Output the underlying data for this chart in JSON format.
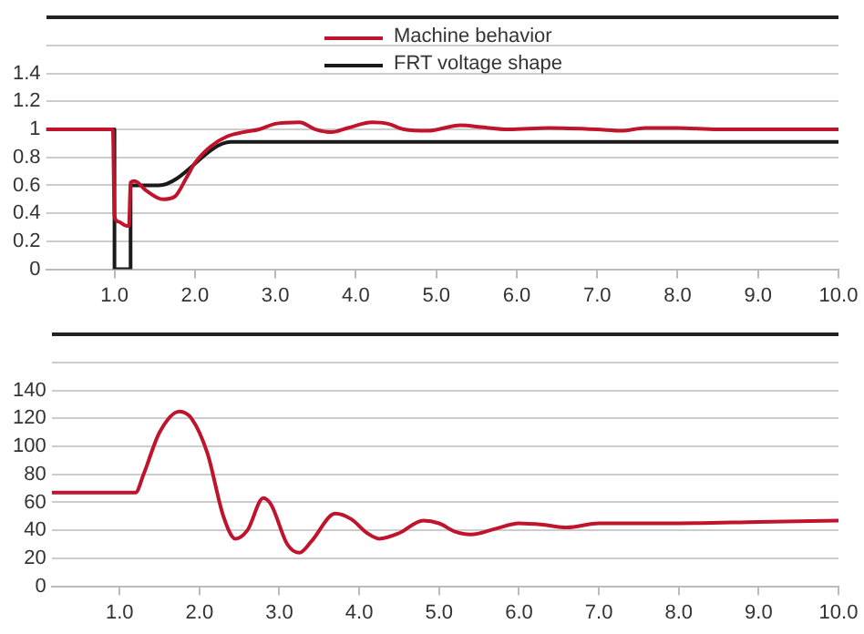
{
  "chart_data": [
    {
      "type": "line",
      "legend": "top",
      "grid": "y",
      "marker": "none",
      "xlim": [
        0.15,
        10
      ],
      "xticks": [
        {
          "value": 1,
          "label": "1.0"
        },
        {
          "value": 2,
          "label": "2.0"
        },
        {
          "value": 3,
          "label": "3.0"
        },
        {
          "value": 4,
          "label": "4.0"
        },
        {
          "value": 5,
          "label": "5.0"
        },
        {
          "value": 6,
          "label": "6.0"
        },
        {
          "value": 7,
          "label": "7.0"
        },
        {
          "value": 8,
          "label": "8.0"
        },
        {
          "value": 9,
          "label": "9.0"
        },
        {
          "value": 10,
          "label": "10.0"
        }
      ],
      "ylim": [
        0,
        1.8
      ],
      "yticks": [
        0,
        0.2,
        0.4,
        0.6,
        0.8,
        1,
        1.2,
        1.4,
        {
          "value": 1.6,
          "label": null
        },
        {
          "value": 1.8,
          "label": null
        }
      ],
      "series": [
        {
          "name": "Machine behavior",
          "color": "#c0142c",
          "x": [
            0.15,
            0.98,
            1.0,
            1.05,
            1.15,
            1.18,
            1.2,
            1.25,
            1.4,
            1.6,
            1.75,
            1.9,
            2.0,
            2.2,
            2.4,
            2.6,
            2.8,
            3.0,
            3.3,
            3.5,
            3.7,
            3.9,
            4.2,
            4.4,
            4.6,
            4.9,
            5.3,
            5.5,
            5.9,
            6.4,
            7.0,
            7.3,
            7.6,
            8.0,
            8.5,
            10
          ],
          "values": [
            1,
            1,
            0.38,
            0.34,
            0.31,
            0.31,
            0.62,
            0.63,
            0.56,
            0.5,
            0.52,
            0.66,
            0.76,
            0.88,
            0.95,
            0.98,
            1.0,
            1.04,
            1.05,
            1.0,
            0.98,
            1.01,
            1.05,
            1.04,
            1.0,
            0.99,
            1.03,
            1.02,
            1.0,
            1.01,
            1.0,
            0.99,
            1.01,
            1.01,
            1.0,
            1.0
          ]
        },
        {
          "name": "FRT voltage shape",
          "color": "#1a1a1a",
          "x": [
            0.15,
            1.0,
            1.0,
            1.2,
            1.2,
            1.55,
            2.45,
            10
          ],
          "values": [
            1,
            1,
            0,
            0,
            0.6,
            0.6,
            0.91,
            0.91
          ]
        }
      ]
    },
    {
      "type": "line",
      "grid": "y",
      "marker": "none",
      "xlim": [
        0.15,
        10
      ],
      "xticks": [
        {
          "value": 1,
          "label": "1.0"
        },
        {
          "value": 2,
          "label": "2.0"
        },
        {
          "value": 3,
          "label": "3.0"
        },
        {
          "value": 4,
          "label": "4.0"
        },
        {
          "value": 5,
          "label": "5.0"
        },
        {
          "value": 6,
          "label": "6.0"
        },
        {
          "value": 7,
          "label": "7.0"
        },
        {
          "value": 8,
          "label": "8.0"
        },
        {
          "value": 9,
          "label": "9.0"
        },
        {
          "value": 10,
          "label": "10.0"
        }
      ],
      "ylim": [
        0,
        180
      ],
      "yticks": [
        0,
        20,
        40,
        60,
        80,
        100,
        120,
        140,
        {
          "value": 160,
          "label": null
        },
        {
          "value": 180,
          "label": null
        }
      ],
      "series": [
        {
          "color": "#c0142c",
          "x": [
            0.15,
            1.2,
            1.3,
            1.5,
            1.75,
            1.9,
            2.1,
            2.3,
            2.45,
            2.6,
            2.8,
            2.9,
            3.1,
            3.25,
            3.4,
            3.7,
            3.9,
            4.1,
            4.25,
            4.5,
            4.8,
            5.0,
            5.2,
            5.4,
            5.7,
            6.0,
            6.3,
            6.6,
            7.0,
            7.5,
            8.0,
            9.0,
            10
          ],
          "values": [
            67,
            67,
            80,
            110,
            125,
            120,
            95,
            50,
            34,
            40,
            63,
            58,
            30,
            24,
            32,
            52,
            48,
            38,
            34,
            38,
            47,
            45,
            39,
            37,
            41,
            45,
            44,
            42,
            45,
            45,
            45,
            46,
            47
          ]
        }
      ]
    }
  ]
}
